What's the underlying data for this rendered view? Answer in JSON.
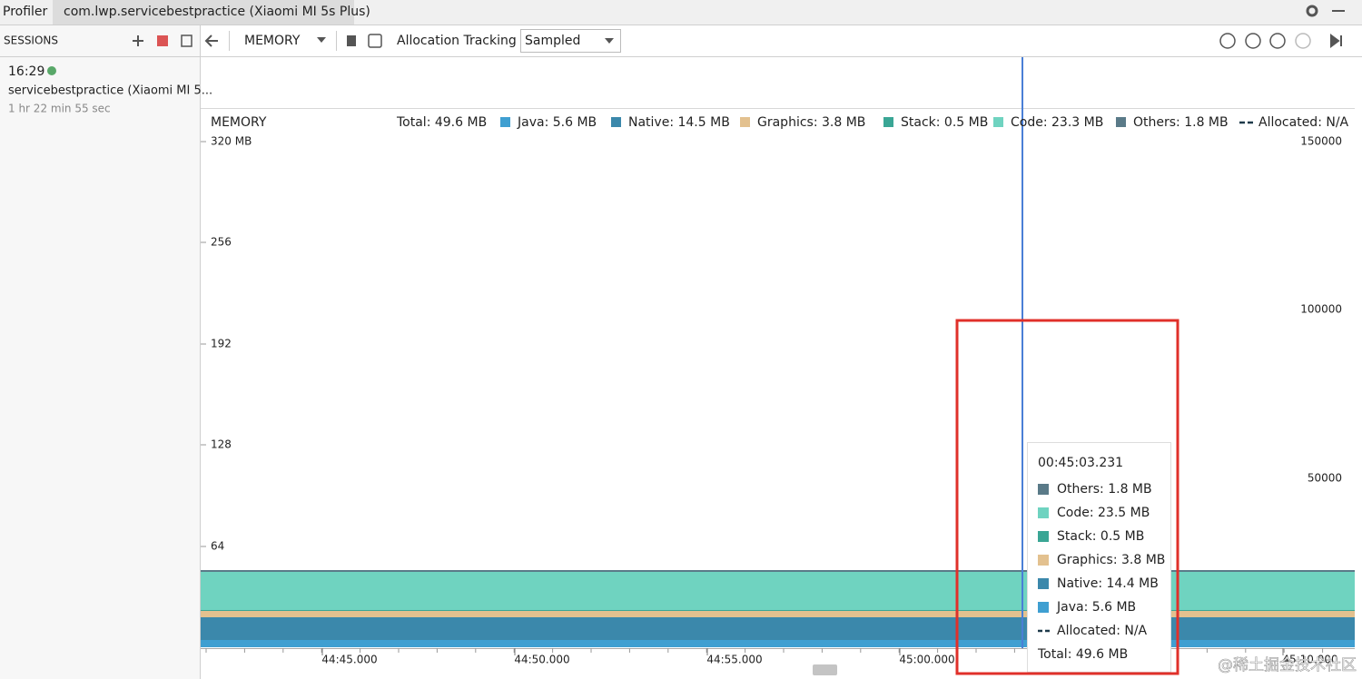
{
  "tabs": [
    "Profiler",
    "com.lwp.servicebestpractice (Xiaomi MI 5s Plus)"
  ],
  "sessions": {
    "header": "SESSIONS",
    "time": "16:29",
    "name": "servicebestpractice (Xiaomi MI 5...",
    "duration": "1 hr 22 min 55 sec"
  },
  "toolbar": {
    "profiler": "MEMORY",
    "tracking_label": "Allocation Tracking",
    "tracking_mode": "Sampled"
  },
  "chart": {
    "title": "MEMORY",
    "total": "Total: 49.6 MB",
    "legend": [
      {
        "label": "Java: 5.6 MB",
        "color": "#3f9fd1"
      },
      {
        "label": "Native: 14.5 MB",
        "color": "#3b88ab"
      },
      {
        "label": "Graphics: 3.8 MB",
        "color": "#e3c18f"
      },
      {
        "label": "Stack: 0.5 MB",
        "color": "#3aa695"
      },
      {
        "label": "Code: 23.3 MB",
        "color": "#6fd3c0"
      },
      {
        "label": "Others: 1.8 MB",
        "color": "#5a7a88"
      }
    ],
    "allocated": "Allocated: N/A",
    "left_axis": [
      "320 MB",
      "256",
      "192",
      "128",
      "64"
    ],
    "right_axis": [
      "150000",
      "100000",
      "50000"
    ],
    "time_axis": [
      "44:45.000",
      "44:50.000",
      "44:55.000",
      "45:00.000",
      "45:10.000"
    ]
  },
  "tooltip": {
    "time": "00:45:03.231",
    "items": [
      {
        "label": "Others: 1.8 MB",
        "color": "#5a7a88"
      },
      {
        "label": "Code: 23.5 MB",
        "color": "#6fd3c0"
      },
      {
        "label": "Stack: 0.5 MB",
        "color": "#3aa695"
      },
      {
        "label": "Graphics: 3.8 MB",
        "color": "#e3c18f"
      },
      {
        "label": "Native: 14.4 MB",
        "color": "#3b88ab"
      },
      {
        "label": "Java: 5.6 MB",
        "color": "#3f9fd1"
      }
    ],
    "allocated": "Allocated: N/A",
    "total": "Total: 49.6 MB"
  },
  "watermark": "@稀土掘金技术社区"
}
